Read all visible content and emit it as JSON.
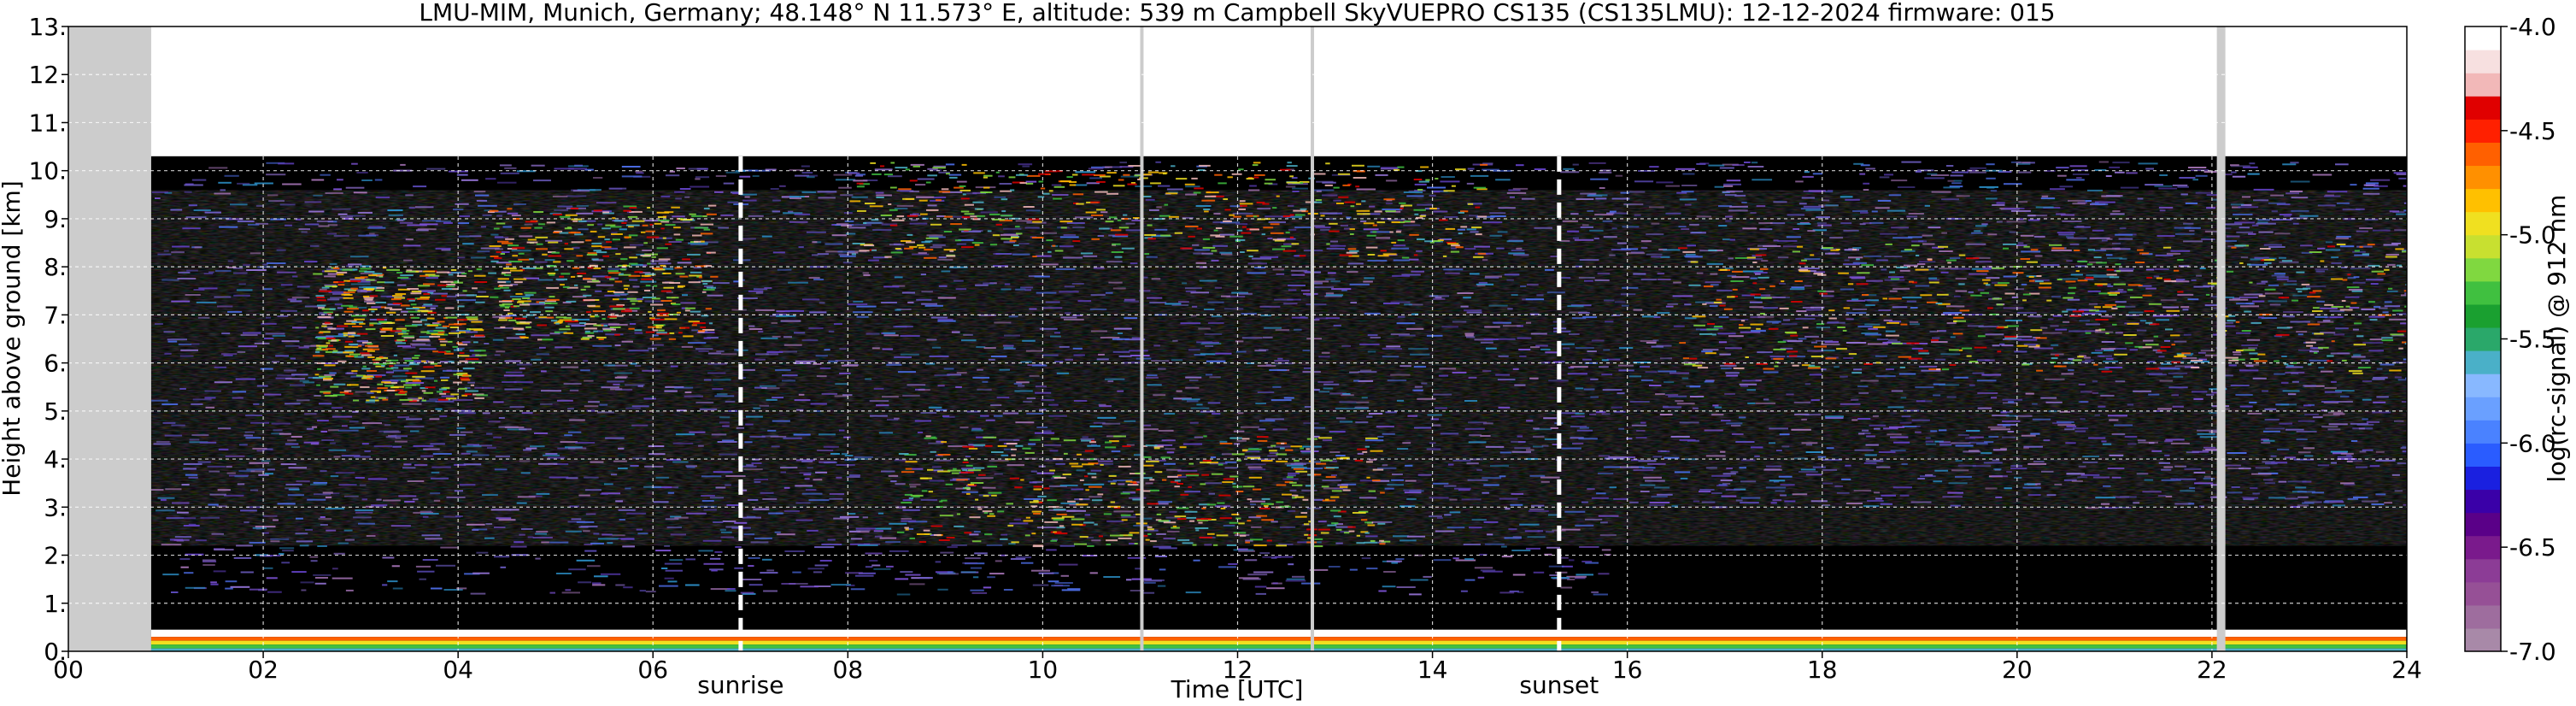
{
  "chart_data": {
    "type": "heatmap",
    "title": "LMU-MIM, Munich, Germany; 48.148° N 11.573° E, altitude: 539 m    Campbell SkyVUEPRO CS135 (CS135LMU): 12-12-2024    firmware: 015",
    "xlabel": "Time [UTC]",
    "ylabel": "Height above ground [km]",
    "colorbar_label": "log(rc-signal) @ 912 nm",
    "xlim": [
      0,
      24
    ],
    "ylim": [
      0,
      13
    ],
    "x_ticks": [
      "00",
      "02",
      "04",
      "06",
      "08",
      "10",
      "12",
      "14",
      "16",
      "18",
      "20",
      "22",
      "24"
    ],
    "x_tick_values": [
      0,
      2,
      4,
      6,
      8,
      10,
      12,
      14,
      16,
      18,
      20,
      22,
      24
    ],
    "y_ticks": [
      "0.",
      "1.",
      "2.",
      "3.",
      "4.",
      "5.",
      "6.",
      "7.",
      "8.",
      "9.",
      "10.",
      "11.",
      "12.",
      "13."
    ],
    "y_tick_values": [
      0,
      1,
      2,
      3,
      4,
      5,
      6,
      7,
      8,
      9,
      10,
      11,
      12,
      13
    ],
    "colorbar_range": [
      -7.0,
      -4.0
    ],
    "colorbar_ticks": [
      "-4.0",
      "-4.5",
      "-5.0",
      "-5.5",
      "-6.0",
      "-6.5",
      "-7.0"
    ],
    "colorbar_tick_values": [
      -4.0,
      -4.5,
      -5.0,
      -5.5,
      -6.0,
      -6.5,
      -7.0
    ],
    "colorbar_colors": [
      "#a889a8",
      "#9e6d9e",
      "#965096",
      "#8c3c96",
      "#7a1a8c",
      "#5a0088",
      "#3a00a8",
      "#1a20e0",
      "#2a5cff",
      "#4a82ff",
      "#6aa0ff",
      "#88b8ff",
      "#4ab0c8",
      "#2aa86a",
      "#1aa030",
      "#40c040",
      "#80d840",
      "#c8e030",
      "#f0e020",
      "#ffc000",
      "#ff9000",
      "#ff6000",
      "#ff2000",
      "#e00000",
      "#f2b8b8",
      "#f7e0e0",
      "#ffffff"
    ],
    "data_max_height_km": 10.3,
    "data_start_hour": 0.85,
    "no_data_color": "#cccccc",
    "annotations": [
      {
        "label": "sunrise",
        "x": 6.9
      },
      {
        "label": "sunset",
        "x": 15.3
      }
    ],
    "grid": true
  }
}
